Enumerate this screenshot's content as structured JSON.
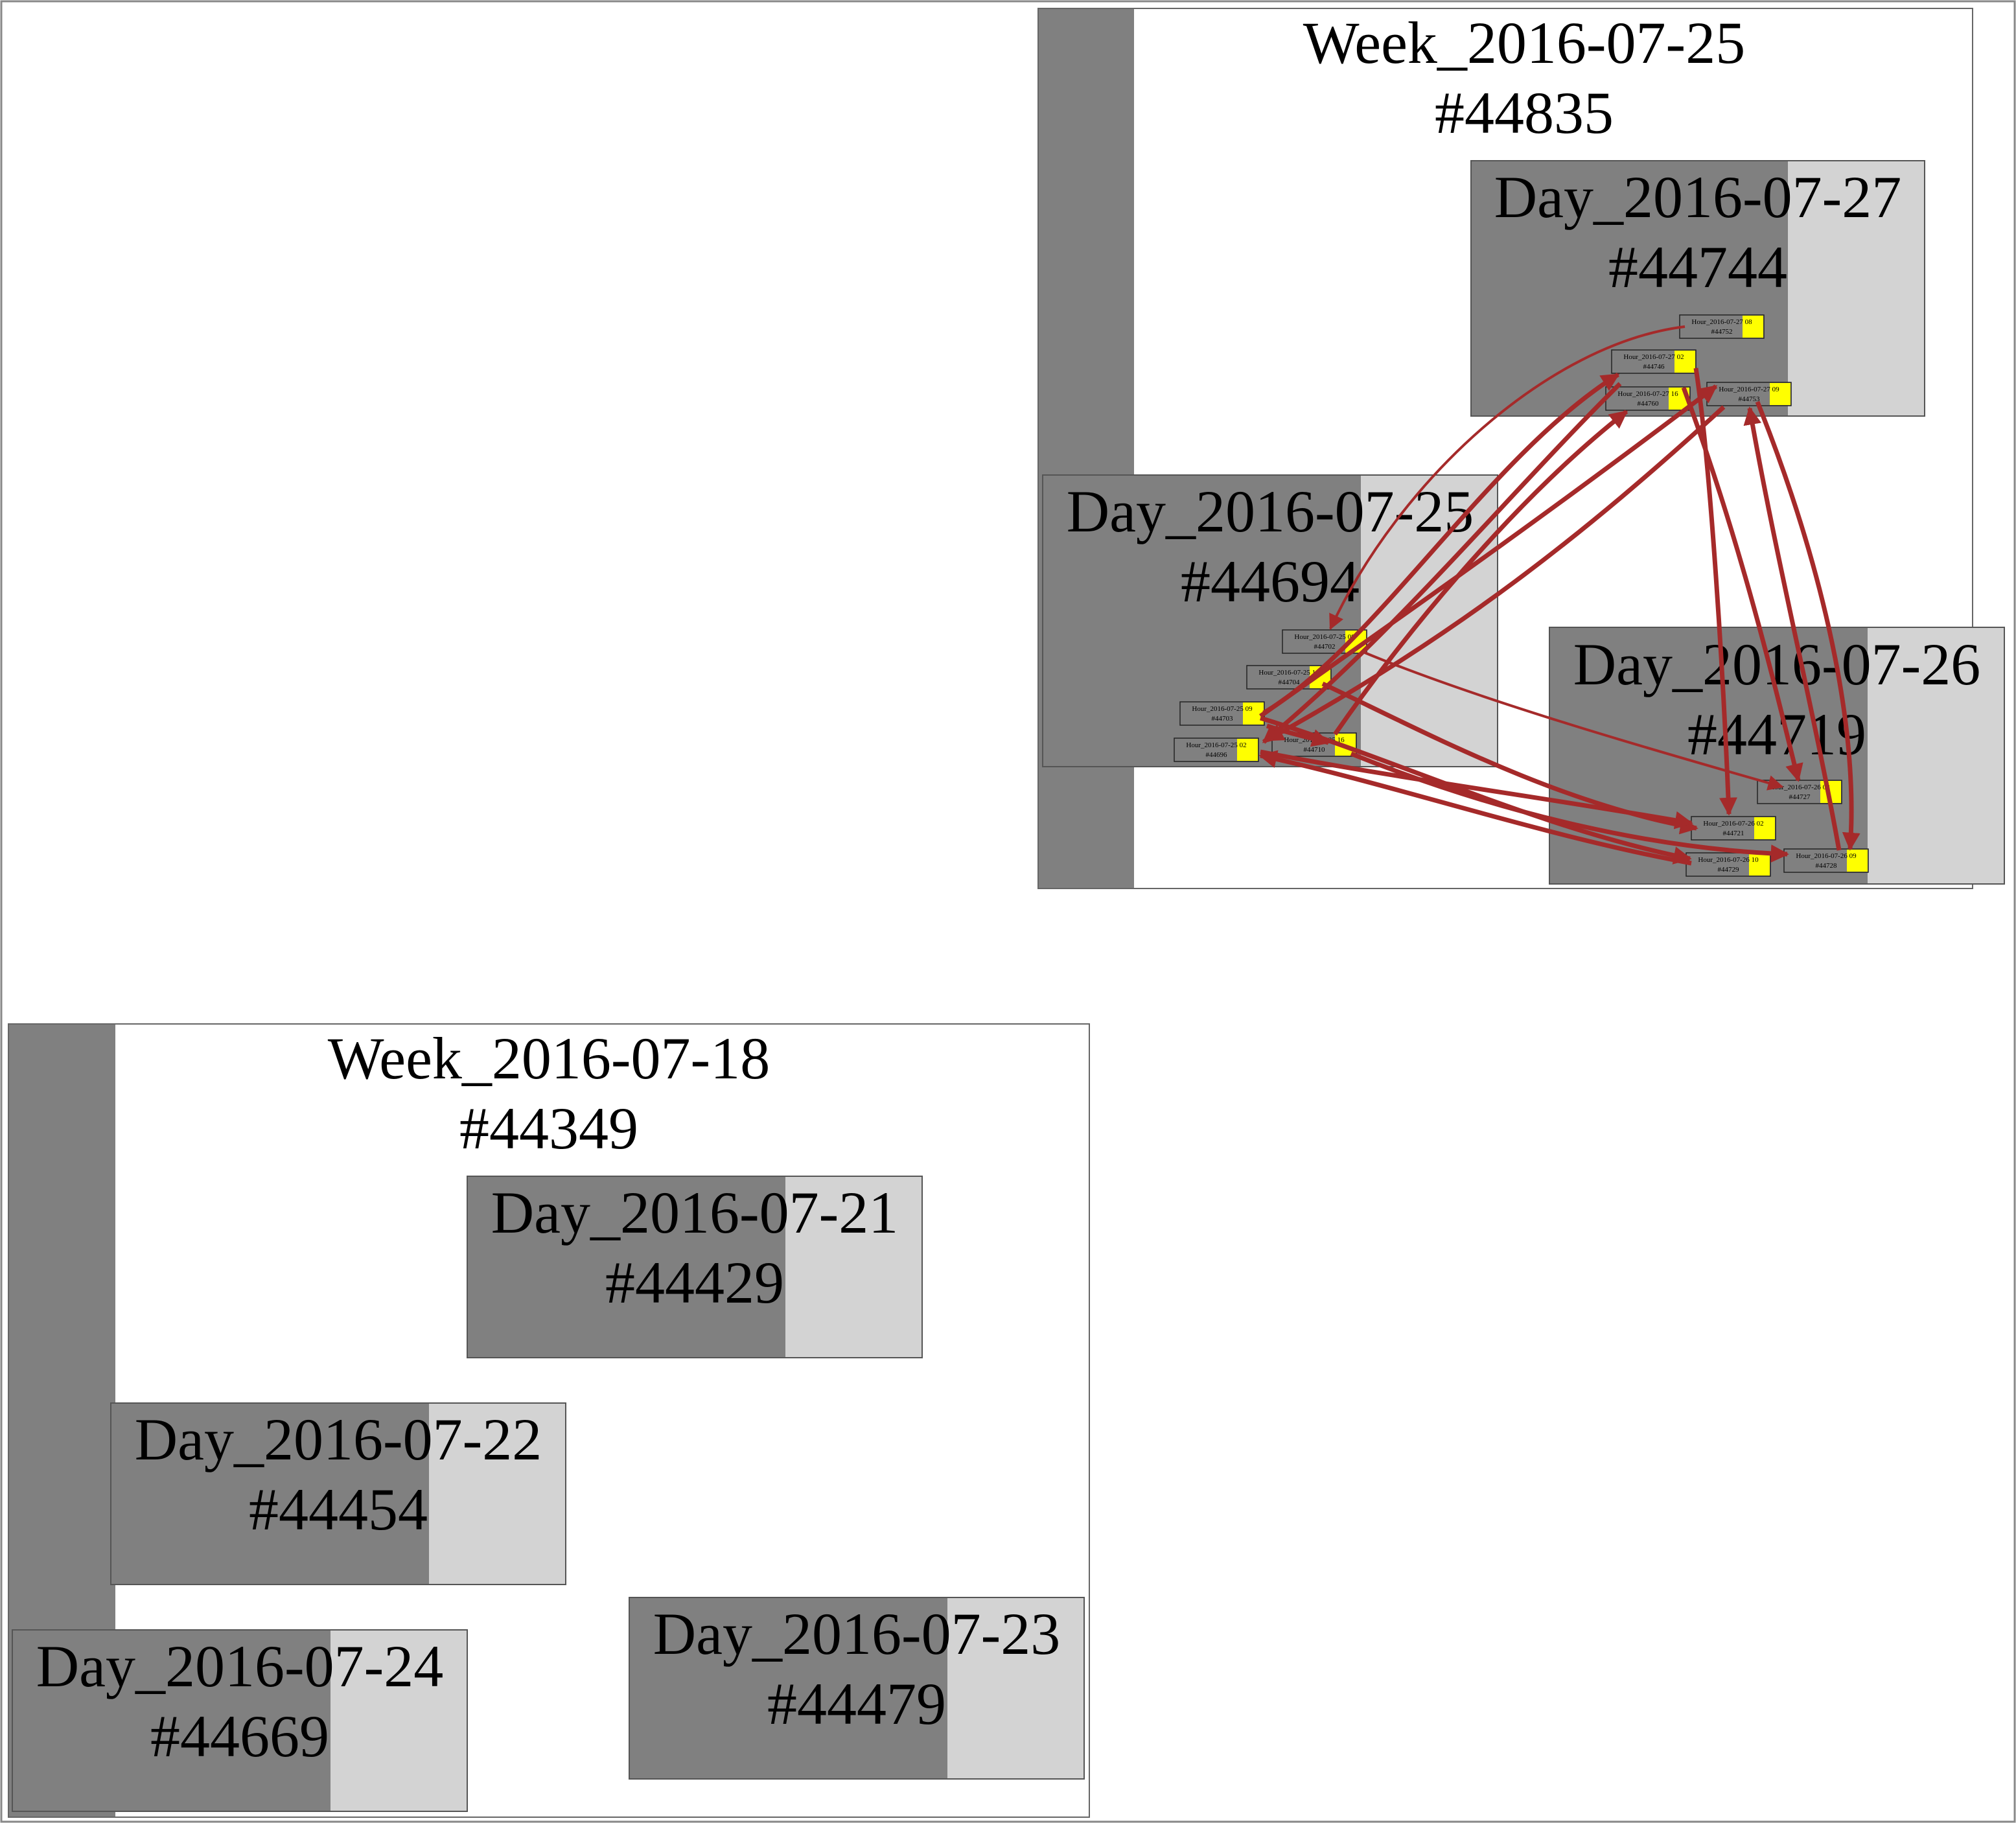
{
  "weeks": [
    {
      "label": "Week_2016-07-25",
      "id": "#44835"
    },
    {
      "label": "Week_2016-07-18",
      "id": "#44349"
    }
  ],
  "days": {
    "d0727": {
      "label": "Day_2016-07-27",
      "id": "#44744"
    },
    "d0725": {
      "label": "Day_2016-07-25",
      "id": "#44694"
    },
    "d0726": {
      "label": "Day_2016-07-26",
      "id": "#44719"
    },
    "d0721": {
      "label": "Day_2016-07-21",
      "id": "#44429"
    },
    "d0722": {
      "label": "Day_2016-07-22",
      "id": "#44454"
    },
    "d0724": {
      "label": "Day_2016-07-24",
      "id": "#44669"
    },
    "d0723": {
      "label": "Day_2016-07-23",
      "id": "#44479"
    }
  },
  "hours": {
    "h44752": {
      "label": "Hour_2016-07-27 08",
      "id": "#44752"
    },
    "h44746": {
      "label": "Hour_2016-07-27 02",
      "id": "#44746"
    },
    "h44760": {
      "label": "Hour_2016-07-27 16",
      "id": "#44760"
    },
    "h44753": {
      "label": "Hour_2016-07-27 09",
      "id": "#44753"
    },
    "h44702": {
      "label": "Hour_2016-07-25 08",
      "id": "#44702"
    },
    "h44704": {
      "label": "Hour_2016-07-25 10",
      "id": "#44704"
    },
    "h44703": {
      "label": "Hour_2016-07-25 09",
      "id": "#44703"
    },
    "h44696": {
      "label": "Hour_2016-07-25 02",
      "id": "#44696"
    },
    "h44710": {
      "label": "Hour_2016-07-25 16",
      "id": "#44710"
    },
    "h44727": {
      "label": "Hour_2016-07-26 08",
      "id": "#44727"
    },
    "h44721": {
      "label": "Hour_2016-07-26 02",
      "id": "#44721"
    },
    "h44729": {
      "label": "Hour_2016-07-26 10",
      "id": "#44729"
    },
    "h44728": {
      "label": "Hour_2016-07-26 09",
      "id": "#44728"
    }
  },
  "colors": {
    "edge": "#a52a2a",
    "hour_highlight": "#ffff00",
    "day_fill_dark": "#808080",
    "day_fill_light": "#d3d3d3",
    "week_bar": "#808080"
  }
}
